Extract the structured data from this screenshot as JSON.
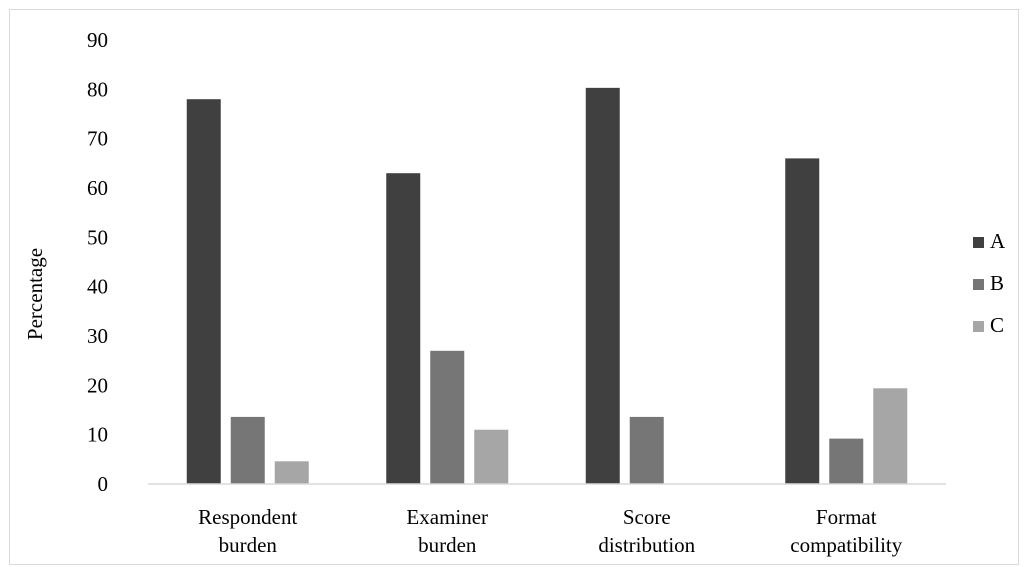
{
  "chart_data": {
    "type": "bar",
    "categories": [
      [
        "Respondent",
        "burden"
      ],
      [
        "Examiner",
        "burden"
      ],
      [
        "Score",
        "distribution"
      ],
      [
        "Format",
        "compatibility"
      ]
    ],
    "series": [
      {
        "name": "A",
        "color": "#404040",
        "values": [
          78,
          63,
          80.3,
          66
        ]
      },
      {
        "name": "B",
        "color": "#767676",
        "values": [
          13.6,
          27,
          13.6,
          9.2
        ]
      },
      {
        "name": "C",
        "color": "#a6a6a6",
        "values": [
          4.6,
          11,
          0,
          19.4
        ]
      }
    ],
    "title": "",
    "xlabel": "",
    "ylabel": "Percentage",
    "ylim": [
      0,
      90
    ],
    "yticks": [
      0,
      10,
      20,
      30,
      40,
      50,
      60,
      70,
      80,
      90
    ],
    "grid": false,
    "legend": "right"
  }
}
